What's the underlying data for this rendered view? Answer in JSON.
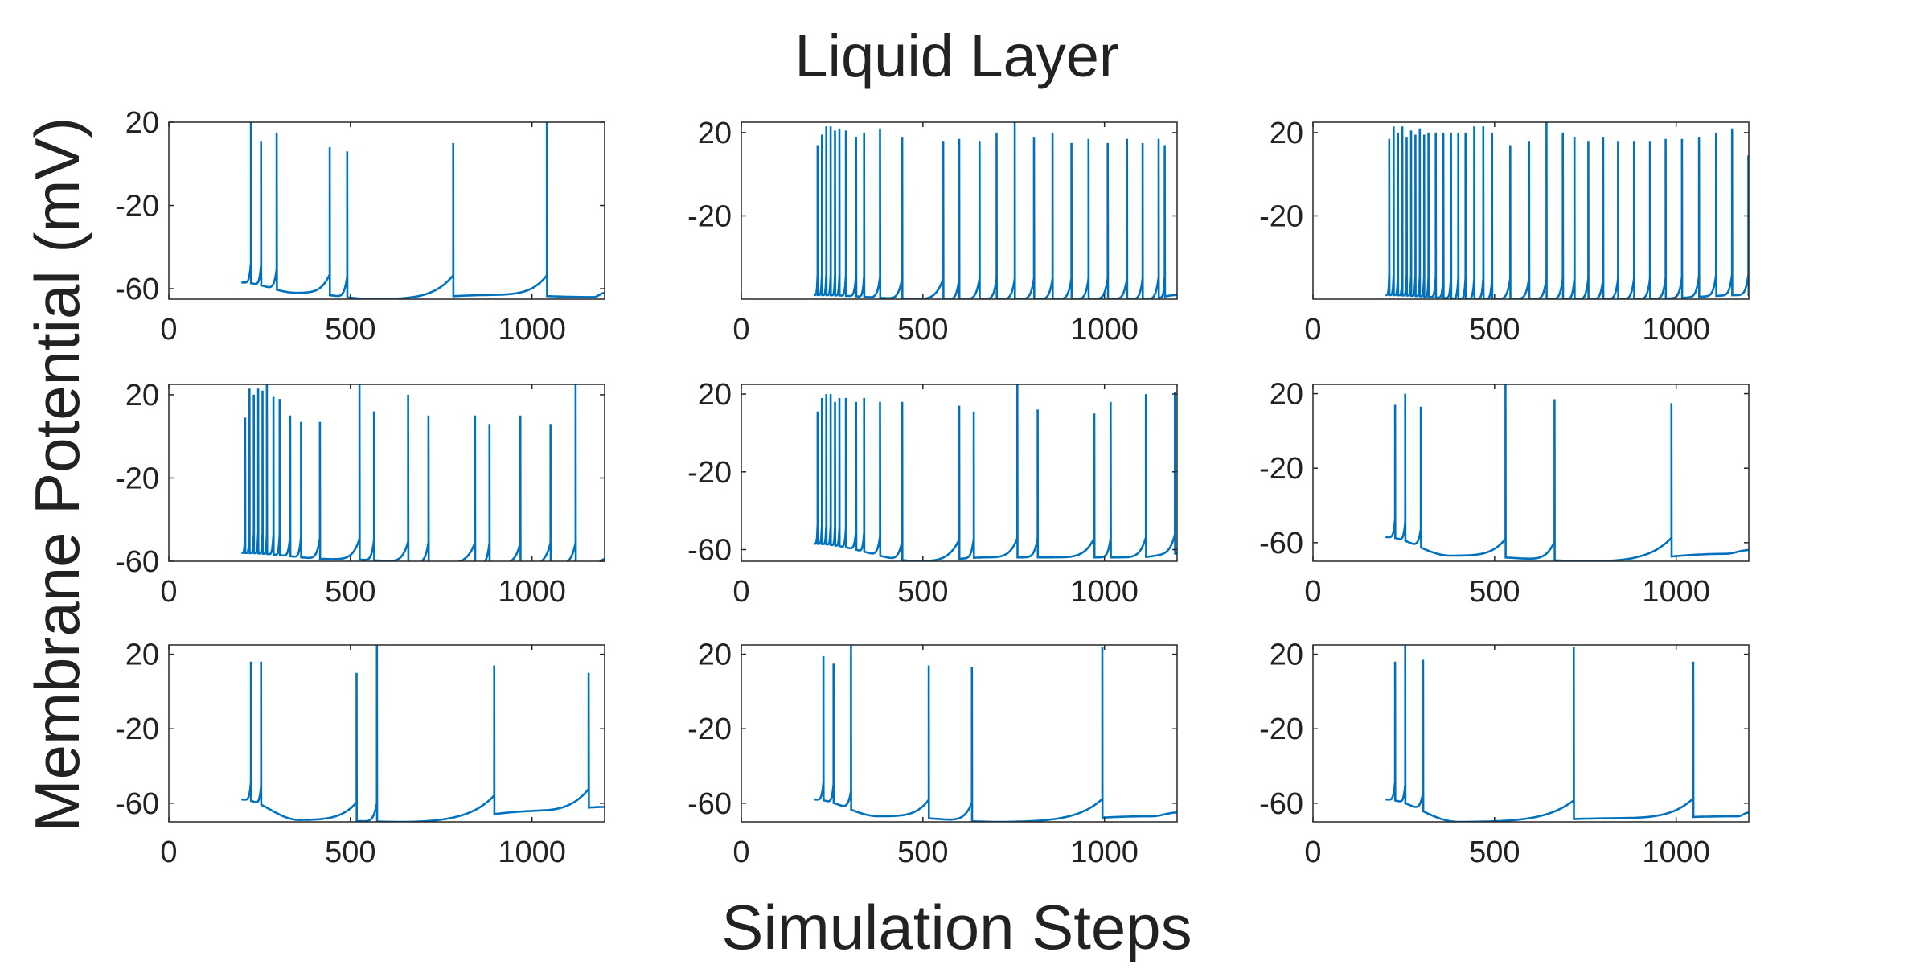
{
  "figure": {
    "title": "Liquid Layer",
    "xlabel": "Simulation Steps",
    "ylabel": "Membrane Potential (mV)",
    "line_color": "#0072BD"
  },
  "chart_data": [
    {
      "type": "line",
      "xlim": [
        0,
        1200
      ],
      "ylim": [
        -65,
        20
      ],
      "xticks": [
        0,
        500,
        1000
      ],
      "yticks": [
        -60,
        -20,
        20
      ],
      "start": 200,
      "rest": -57,
      "spikes": [
        [
          226,
          20
        ],
        [
          254,
          11
        ],
        [
          297,
          15
        ],
        [
          443,
          8
        ],
        [
          491,
          6
        ],
        [
          783,
          10
        ],
        [
          1041,
          20
        ]
      ],
      "troughs": [
        [
          355,
          -62
        ],
        [
          570,
          -65
        ],
        [
          900,
          -63
        ],
        [
          1170,
          -64
        ]
      ]
    },
    {
      "type": "line",
      "xlim": [
        0,
        1200
      ],
      "ylim": [
        -60,
        25
      ],
      "xticks": [
        0,
        500,
        1000
      ],
      "yticks": [
        -20,
        20
      ],
      "start": 200,
      "rest": -58,
      "spikes": [
        [
          210,
          14
        ],
        [
          222,
          19
        ],
        [
          234,
          23
        ],
        [
          246,
          23
        ],
        [
          258,
          21
        ],
        [
          270,
          22
        ],
        [
          288,
          21
        ],
        [
          316,
          18
        ],
        [
          338,
          20
        ],
        [
          382,
          22
        ],
        [
          443,
          18
        ],
        [
          556,
          16
        ],
        [
          600,
          17
        ],
        [
          656,
          16
        ],
        [
          703,
          20
        ],
        [
          753,
          25
        ],
        [
          806,
          18
        ],
        [
          857,
          20
        ],
        [
          909,
          15
        ],
        [
          956,
          17
        ],
        [
          1009,
          15
        ],
        [
          1062,
          17
        ],
        [
          1105,
          15
        ],
        [
          1149,
          17
        ],
        [
          1166,
          14
        ]
      ],
      "troughs": [
        [
          500,
          -60
        ],
        [
          756,
          -60
        ],
        [
          1119,
          -60
        ]
      ]
    },
    {
      "type": "line",
      "xlim": [
        0,
        1200
      ],
      "ylim": [
        -60,
        25
      ],
      "xticks": [
        0,
        500,
        1000
      ],
      "yticks": [
        -20,
        20
      ],
      "start": 200,
      "rest": -58,
      "spikes": [
        [
          210,
          17
        ],
        [
          222,
          23
        ],
        [
          234,
          20
        ],
        [
          246,
          23
        ],
        [
          258,
          18
        ],
        [
          270,
          21
        ],
        [
          282,
          19
        ],
        [
          294,
          22
        ],
        [
          306,
          19
        ],
        [
          318,
          20
        ],
        [
          338,
          20
        ],
        [
          359,
          20
        ],
        [
          380,
          20
        ],
        [
          400,
          20
        ],
        [
          420,
          20
        ],
        [
          444,
          23
        ],
        [
          469,
          23
        ],
        [
          493,
          20
        ],
        [
          543,
          14
        ],
        [
          595,
          16
        ],
        [
          643,
          25
        ],
        [
          688,
          20
        ],
        [
          720,
          18
        ],
        [
          758,
          16
        ],
        [
          799,
          18
        ],
        [
          840,
          16
        ],
        [
          884,
          16
        ],
        [
          928,
          16
        ],
        [
          971,
          17
        ],
        [
          1016,
          17
        ],
        [
          1063,
          18
        ],
        [
          1110,
          20
        ],
        [
          1154,
          22
        ],
        [
          1199,
          9
        ]
      ],
      "troughs": [
        [
          450,
          -60
        ],
        [
          650,
          -60
        ],
        [
          900,
          -60
        ]
      ]
    },
    {
      "type": "line",
      "xlim": [
        0,
        1200
      ],
      "ylim": [
        -60,
        25
      ],
      "xticks": [
        0,
        500,
        1000
      ],
      "yticks": [
        -60,
        -20,
        20
      ],
      "start": 200,
      "rest": -56,
      "spikes": [
        [
          210,
          9
        ],
        [
          222,
          23
        ],
        [
          234,
          20
        ],
        [
          246,
          23
        ],
        [
          258,
          22
        ],
        [
          270,
          25
        ],
        [
          288,
          19
        ],
        [
          305,
          18
        ],
        [
          334,
          10
        ],
        [
          364,
          7
        ],
        [
          416,
          7
        ],
        [
          525,
          25
        ],
        [
          565,
          12
        ],
        [
          659,
          20
        ],
        [
          715,
          10
        ],
        [
          843,
          10
        ],
        [
          883,
          6
        ],
        [
          968,
          10
        ],
        [
          1051,
          6
        ],
        [
          1120,
          25
        ]
      ],
      "troughs": [
        [
          460,
          -59
        ],
        [
          760,
          -61
        ],
        [
          1175,
          -61
        ]
      ]
    },
    {
      "type": "line",
      "xlim": [
        0,
        1200
      ],
      "ylim": [
        -66,
        25
      ],
      "xticks": [
        0,
        500,
        1000
      ],
      "yticks": [
        -60,
        -20,
        20
      ],
      "start": 200,
      "rest": -57,
      "spikes": [
        [
          210,
          11
        ],
        [
          222,
          18
        ],
        [
          234,
          20
        ],
        [
          246,
          20
        ],
        [
          258,
          16
        ],
        [
          270,
          18
        ],
        [
          288,
          18
        ],
        [
          316,
          16
        ],
        [
          338,
          18
        ],
        [
          382,
          16
        ],
        [
          443,
          16
        ],
        [
          600,
          14
        ],
        [
          640,
          11
        ],
        [
          760,
          25
        ],
        [
          816,
          12
        ],
        [
          972,
          10
        ],
        [
          1017,
          16
        ],
        [
          1114,
          20
        ],
        [
          1194,
          21
        ]
      ],
      "troughs": [
        [
          493,
          -66
        ],
        [
          680,
          -64
        ],
        [
          1090,
          -64
        ]
      ]
    },
    {
      "type": "line",
      "xlim": [
        0,
        1200
      ],
      "ylim": [
        -70,
        25
      ],
      "xticks": [
        0,
        500,
        1000
      ],
      "yticks": [
        -60,
        -20,
        20
      ],
      "start": 200,
      "rest": -57,
      "spikes": [
        [
          226,
          14
        ],
        [
          254,
          20
        ],
        [
          297,
          13
        ],
        [
          530,
          25
        ],
        [
          665,
          17
        ],
        [
          987,
          15
        ]
      ],
      "troughs": [
        [
          380,
          -67
        ],
        [
          772,
          -70
        ],
        [
          1135,
          -66
        ]
      ]
    },
    {
      "type": "line",
      "xlim": [
        0,
        1200
      ],
      "ylim": [
        -70,
        25
      ],
      "xticks": [
        0,
        500,
        1000
      ],
      "yticks": [
        -60,
        -20,
        20
      ],
      "start": 200,
      "rest": -58,
      "spikes": [
        [
          226,
          16
        ],
        [
          254,
          16
        ],
        [
          517,
          10
        ],
        [
          573,
          25
        ],
        [
          896,
          14
        ],
        [
          1156,
          10
        ]
      ],
      "troughs": [
        [
          360,
          -69
        ],
        [
          650,
          -70
        ],
        [
          1040,
          -64
        ]
      ]
    },
    {
      "type": "line",
      "xlim": [
        0,
        1200
      ],
      "ylim": [
        -70,
        25
      ],
      "xticks": [
        0,
        500,
        1000
      ],
      "yticks": [
        -60,
        -20,
        20
      ],
      "start": 200,
      "rest": -58,
      "spikes": [
        [
          226,
          19
        ],
        [
          254,
          15
        ],
        [
          302,
          25
        ],
        [
          516,
          14
        ],
        [
          635,
          13
        ],
        [
          994,
          24
        ]
      ],
      "troughs": [
        [
          380,
          -67
        ],
        [
          710,
          -70
        ],
        [
          1130,
          -67
        ]
      ]
    },
    {
      "type": "line",
      "xlim": [
        0,
        1200
      ],
      "ylim": [
        -70,
        25
      ],
      "xticks": [
        0,
        500,
        1000
      ],
      "yticks": [
        -60,
        -20,
        20
      ],
      "start": 200,
      "rest": -58,
      "spikes": [
        [
          226,
          16
        ],
        [
          254,
          25
        ],
        [
          303,
          17
        ],
        [
          718,
          24
        ],
        [
          1047,
          16
        ]
      ],
      "troughs": [
        [
          400,
          -70
        ],
        [
          870,
          -68
        ],
        [
          1170,
          -67
        ]
      ]
    }
  ]
}
